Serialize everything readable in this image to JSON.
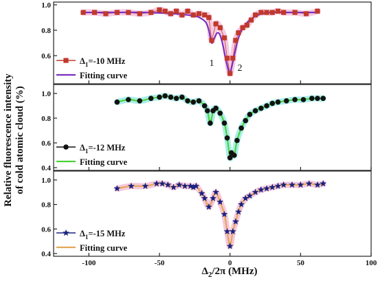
{
  "chart_data": {
    "type": "scatter",
    "ylabel_line1": "Relative fluorescence intensity",
    "ylabel_line2": "of cold atomic cloud (%)",
    "xlabel_main": "Δ",
    "xlabel_sub": "2",
    "xlabel_rest": "/2π (MHz)",
    "xlim": [
      -125,
      100
    ],
    "xticks": [
      -100,
      -50,
      0,
      50,
      100
    ],
    "xtick_labels": [
      "-100",
      "-50",
      "0",
      "50",
      "100"
    ],
    "fit_legend_label": "Fitting curve",
    "panels": [
      {
        "id": "p10",
        "ylim": [
          0.4,
          1.0
        ],
        "yticks": [
          0.6,
          0.8,
          1.0
        ],
        "ytick_labels": [
          "0.6",
          "0.8",
          "1.0"
        ],
        "series_name_prefix": "Δ",
        "series_name_sub": "1",
        "series_name_rest": "=-10 MHz",
        "marker": "square",
        "marker_color": "#c0392b",
        "fit_color": "#7b2fbe",
        "band_color": "#f3b8d8",
        "annotations": [
          {
            "text": "1",
            "x": -13,
            "y": 0.52
          },
          {
            "text": "2",
            "x": 7,
            "y": 0.48
          }
        ],
        "x": [
          -104,
          -96,
          -88,
          -80,
          -72,
          -64,
          -56,
          -50,
          -46,
          -42,
          -38,
          -34,
          -30,
          -26,
          -22,
          -18,
          -15,
          -13,
          -10,
          -7,
          -4,
          -2,
          0,
          2,
          4,
          6,
          9,
          12,
          15,
          18,
          22,
          26,
          30,
          34,
          38,
          46,
          54,
          62
        ],
        "y": [
          0.94,
          0.94,
          0.93,
          0.94,
          0.94,
          0.93,
          0.94,
          0.96,
          0.95,
          0.93,
          0.95,
          0.92,
          0.95,
          0.92,
          0.93,
          0.92,
          0.9,
          0.72,
          0.85,
          0.82,
          0.74,
          0.58,
          0.46,
          0.58,
          0.72,
          0.78,
          0.82,
          0.84,
          0.88,
          0.92,
          0.94,
          0.94,
          0.94,
          0.95,
          0.94,
          0.94,
          0.93,
          0.95
        ],
        "fit_x": [
          -104,
          -80,
          -60,
          -40,
          -30,
          -24,
          -20,
          -17,
          -15,
          -13,
          -11,
          -9,
          -7,
          -5,
          -3,
          -1,
          0,
          1,
          3,
          5,
          7,
          10,
          14,
          20,
          28,
          40,
          62
        ],
        "fit_y": [
          0.94,
          0.94,
          0.94,
          0.93,
          0.92,
          0.91,
          0.89,
          0.86,
          0.8,
          0.7,
          0.74,
          0.78,
          0.76,
          0.68,
          0.57,
          0.48,
          0.46,
          0.5,
          0.6,
          0.7,
          0.77,
          0.83,
          0.88,
          0.92,
          0.94,
          0.94,
          0.94
        ]
      },
      {
        "id": "p12",
        "ylim": [
          0.4,
          1.05
        ],
        "yticks": [
          0.4,
          0.6,
          0.8,
          1.0
        ],
        "ytick_labels": [
          "0.4",
          "0.6",
          "0.8",
          "1.0"
        ],
        "series_name_prefix": "Δ",
        "series_name_sub": "1",
        "series_name_rest": "=-12 MHz",
        "marker": "circle",
        "marker_color": "#111111",
        "fit_color": "#4cd137",
        "band_color": "#8ee8e0",
        "annotations": [],
        "x": [
          -80,
          -72,
          -64,
          -56,
          -50,
          -46,
          -42,
          -38,
          -34,
          -30,
          -26,
          -22,
          -18,
          -16,
          -14,
          -12,
          -10,
          -7,
          -4,
          -2,
          0,
          1,
          3,
          5,
          8,
          11,
          14,
          18,
          22,
          26,
          30,
          34,
          40,
          46,
          52,
          58,
          62,
          66
        ],
        "y": [
          0.93,
          0.95,
          0.94,
          0.96,
          0.97,
          0.98,
          0.97,
          0.96,
          0.97,
          0.94,
          0.93,
          0.94,
          0.9,
          0.86,
          0.76,
          0.86,
          0.88,
          0.84,
          0.76,
          0.64,
          0.48,
          0.52,
          0.5,
          0.62,
          0.72,
          0.78,
          0.83,
          0.86,
          0.88,
          0.9,
          0.92,
          0.93,
          0.94,
          0.95,
          0.95,
          0.96,
          0.96,
          0.96
        ]
      },
      {
        "id": "p15",
        "ylim": [
          0.4,
          1.05
        ],
        "yticks": [
          0.4,
          0.6,
          0.8,
          1.0
        ],
        "ytick_labels": [
          "0.4",
          "0.6",
          "0.8",
          "1.0"
        ],
        "series_name_prefix": "Δ",
        "series_name_sub": "1",
        "series_name_rest": "=-15 MHz",
        "marker": "star",
        "marker_color": "#1a237e",
        "fit_color": "#e3a857",
        "band_color": "#f4b6d2",
        "annotations": [],
        "x": [
          -80,
          -70,
          -60,
          -52,
          -48,
          -44,
          -40,
          -36,
          -32,
          -28,
          -26,
          -24,
          -20,
          -18,
          -15,
          -12,
          -10,
          -7,
          -4,
          -2,
          0,
          2,
          4,
          6,
          8,
          11,
          14,
          18,
          22,
          26,
          30,
          34,
          38,
          44,
          50,
          56,
          62,
          66
        ],
        "y": [
          0.93,
          0.95,
          0.95,
          0.97,
          0.97,
          0.96,
          0.94,
          0.96,
          0.95,
          0.95,
          0.94,
          0.95,
          0.89,
          0.85,
          0.78,
          0.85,
          0.9,
          0.82,
          0.72,
          0.58,
          0.46,
          0.58,
          0.66,
          0.74,
          0.8,
          0.85,
          0.87,
          0.9,
          0.92,
          0.93,
          0.94,
          0.95,
          0.96,
          0.96,
          0.96,
          0.97,
          0.96,
          0.97
        ]
      }
    ]
  }
}
